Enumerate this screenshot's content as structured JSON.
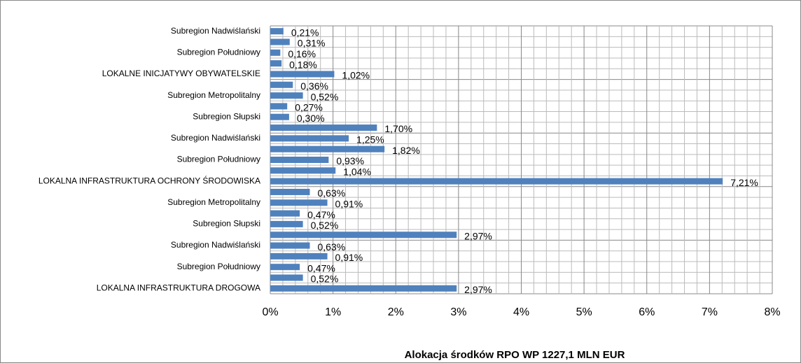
{
  "chart_data": {
    "type": "bar",
    "orientation": "horizontal",
    "title": "Alokacja środków RPO WP 1227,1 MLN EUR",
    "categories": [
      "Subregion Nadwiślański",
      null,
      "Subregion Południowy",
      null,
      "LOKALNE INICJATYWY OBYWATELSKIE",
      null,
      "Subregion Metropolitalny",
      null,
      "Subregion Słupski",
      null,
      "Subregion Nadwiślański",
      null,
      "Subregion Południowy",
      null,
      "LOKALNA INFRASTRUKTURA OCHRONY ŚRODOWISKA",
      null,
      "Subregion Metropolitalny",
      null,
      "Subregion Słupski",
      null,
      "Subregion Nadwiślański",
      null,
      "Subregion Południowy",
      null,
      "LOKALNA INFRASTRUKTURA DROGOWA"
    ],
    "values": [
      0.21,
      0.31,
      0.16,
      0.18,
      1.02,
      0.36,
      0.52,
      0.27,
      0.3,
      1.7,
      1.25,
      1.82,
      0.93,
      1.04,
      7.21,
      0.63,
      0.91,
      0.47,
      0.52,
      2.97,
      0.63,
      0.91,
      0.47,
      0.52,
      2.97
    ],
    "value_labels": [
      "0,21%",
      "0,31%",
      "0,16%",
      "0,18%",
      "1,02%",
      "0,36%",
      "0,52%",
      "0,27%",
      "0,30%",
      "1,70%",
      "1,25%",
      "1,82%",
      "0,93%",
      "1,04%",
      "7,21%",
      "0,63%",
      "0,91%",
      "0,47%",
      "0,52%",
      "2,97%",
      "0,63%",
      "0,91%",
      "0,47%",
      "0,52%",
      "2,97%"
    ],
    "color": "#4f81bd",
    "xlim": [
      0,
      8
    ],
    "xticks": [
      {
        "value": 0,
        "label": "0%"
      },
      {
        "value": 1,
        "label": "1%"
      },
      {
        "value": 2,
        "label": "2%"
      },
      {
        "value": 3,
        "label": "3%"
      },
      {
        "value": 4,
        "label": "4%"
      },
      {
        "value": 5,
        "label": "5%"
      },
      {
        "value": 6,
        "label": "6%"
      },
      {
        "value": 7,
        "label": "7%"
      },
      {
        "value": 8,
        "label": "8%"
      }
    ],
    "xminorticks": [
      0.2,
      0.4,
      0.6,
      0.8,
      1.2,
      1.4,
      1.6,
      1.8,
      2.2,
      2.4,
      2.6,
      2.8,
      3.2,
      3.4,
      3.6,
      3.8,
      4.2,
      4.4,
      4.6,
      4.8,
      5.2,
      5.4,
      5.6,
      5.8,
      6.2,
      6.4,
      6.6,
      6.8,
      7.2,
      7.4,
      7.6,
      7.8
    ],
    "grid": true
  }
}
